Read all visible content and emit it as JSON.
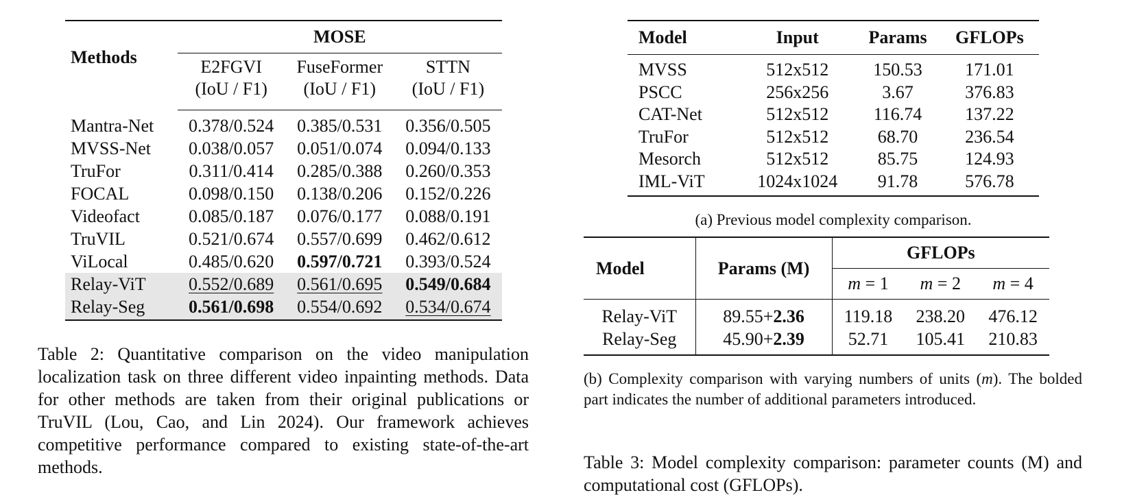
{
  "table2": {
    "methods_header": "Methods",
    "dataset": "MOSE",
    "columns": [
      {
        "name": "E2FGVI",
        "metric": "(IoU / F1)"
      },
      {
        "name": "FuseFormer",
        "metric": "(IoU / F1)"
      },
      {
        "name": "STTN",
        "metric": "(IoU / F1)"
      }
    ],
    "rows": [
      {
        "method": "Mantra-Net",
        "values": [
          "0.378/0.524",
          "0.385/0.531",
          "0.356/0.505"
        ]
      },
      {
        "method": "MVSS-Net",
        "values": [
          "0.038/0.057",
          "0.051/0.074",
          "0.094/0.133"
        ]
      },
      {
        "method": "TruFor",
        "values": [
          "0.311/0.414",
          "0.285/0.388",
          "0.260/0.353"
        ]
      },
      {
        "method": "FOCAL",
        "values": [
          "0.098/0.150",
          "0.138/0.206",
          "0.152/0.226"
        ]
      },
      {
        "method": "Videofact",
        "values": [
          "0.085/0.187",
          "0.076/0.177",
          "0.088/0.191"
        ]
      },
      {
        "method": "TruVIL",
        "values": [
          "0.521/0.674",
          "0.557/0.699",
          "0.462/0.612"
        ]
      },
      {
        "method": "ViLocal",
        "values": [
          "0.485/0.620",
          "0.597/0.721",
          "0.393/0.524"
        ]
      },
      {
        "method": "Relay-ViT",
        "values": [
          "0.552/0.689",
          "0.561/0.695",
          "0.549/0.684"
        ]
      },
      {
        "method": "Relay-Seg",
        "values": [
          "0.561/0.698",
          "0.554/0.692",
          "0.534/0.674"
        ]
      }
    ],
    "caption": "Table 2: Quantitative comparison on the video manipulation localization task on three different video inpainting methods. Data for other methods are taken from their original publications or TruVIL (Lou, Cao, and Lin 2024). Our framework achieves competitive performance compared to existing state-of-the-art methods."
  },
  "table3a": {
    "headers": [
      "Model",
      "Input",
      "Params",
      "GFLOPs"
    ],
    "rows": [
      [
        "MVSS",
        "512x512",
        "150.53",
        "171.01"
      ],
      [
        "PSCC",
        "256x256",
        "3.67",
        "376.83"
      ],
      [
        "CAT-Net",
        "512x512",
        "116.74",
        "137.22"
      ],
      [
        "TruFor",
        "512x512",
        "68.70",
        "236.54"
      ],
      [
        "Mesorch",
        "512x512",
        "85.75",
        "124.93"
      ],
      [
        "IML-ViT",
        "1024x1024",
        "91.78",
        "576.78"
      ]
    ],
    "caption": "(a) Previous model complexity comparison."
  },
  "table3b": {
    "model_header": "Model",
    "params_header": "Params (M)",
    "gflops_header": "GFLOPs",
    "m_prefix": "m",
    "m_values": [
      "= 1",
      "= 2",
      "= 4"
    ],
    "rows": [
      {
        "model": "Relay-ViT",
        "params_base": "89.55+",
        "params_extra": "2.36",
        "gflops": [
          "119.18",
          "238.20",
          "476.12"
        ]
      },
      {
        "model": "Relay-Seg",
        "params_base": "45.90+",
        "params_extra": "2.39",
        "gflops": [
          "52.71",
          "105.41",
          "210.83"
        ]
      }
    ],
    "caption_start": "(b) Complexity comparison with varying numbers of units (",
    "caption_m": "m",
    "caption_end": "). The bolded part indicates the number of additional parameters introduced."
  },
  "table3_caption": "Table 3: Model complexity comparison: parameter counts (M) and computational cost (GFLOPs)."
}
